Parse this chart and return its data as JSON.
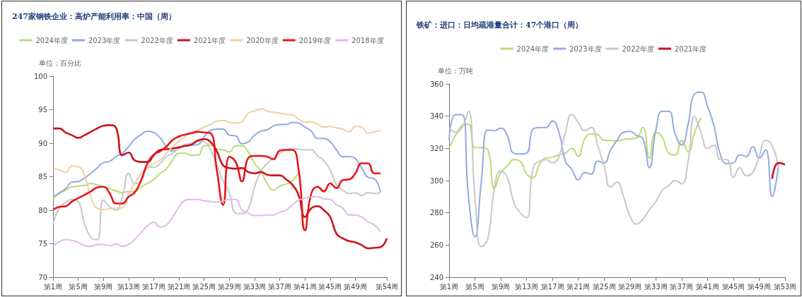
{
  "chart_data": [
    {
      "type": "line",
      "title": "247家钢铁企业：高炉产能利用率：中国（周）",
      "ylabel": "单位：百分比",
      "legend": "top",
      "marker": "none",
      "grid": false,
      "ylim": [
        70,
        100
      ],
      "yticks": [
        70,
        75,
        80,
        85,
        90,
        95,
        100
      ],
      "categories": [
        "第1周",
        null,
        null,
        null,
        "第5周",
        null,
        null,
        null,
        "第9周",
        null,
        null,
        null,
        "第13周",
        null,
        null,
        null,
        "第17周",
        null,
        null,
        null,
        "第21周",
        null,
        null,
        null,
        "第25周",
        null,
        null,
        null,
        "第29周",
        null,
        null,
        null,
        "第33周",
        null,
        null,
        null,
        "第37周",
        null,
        null,
        null,
        "第41周",
        null,
        null,
        null,
        "第45周",
        null,
        null,
        null,
        "第49周",
        null,
        null,
        null,
        null,
        "第54周"
      ],
      "series": [
        {
          "name": "2024年度",
          "color": "#b8dc74",
          "values": [
            81.7,
            82.5,
            83,
            83.5,
            83.6,
            83.7,
            84,
            83.8,
            83.5,
            83.2,
            82.9,
            82.6,
            82.8,
            82.8,
            83.5,
            84,
            84.6,
            85.5,
            86.2,
            87.5,
            88.5,
            88.5,
            88.2,
            88.2,
            89.6,
            89.7,
            89.1,
            89,
            88.7,
            89.6,
            89.6,
            88.7,
            87,
            85.8,
            84,
            83,
            83.6,
            83.9,
            84.4,
            85.6,
            null,
            null,
            null,
            null,
            null,
            null,
            null,
            null,
            null,
            null,
            null,
            null,
            null,
            null
          ]
        },
        {
          "name": "2023年度",
          "color": "#92aae0",
          "values": [
            82,
            82.6,
            83.2,
            84.2,
            84.3,
            84.8,
            85.5,
            86.3,
            87.1,
            87.3,
            88,
            88.5,
            89.5,
            90.6,
            91.3,
            91.8,
            91.6,
            90.8,
            89.5,
            88.8,
            89.2,
            89.8,
            89.7,
            89.8,
            91,
            91.9,
            92.1,
            92.1,
            91.2,
            91.1,
            89.9,
            90.2,
            91.2,
            91.8,
            92,
            92.6,
            92.8,
            92.8,
            93.1,
            93,
            92.4,
            91.8,
            90.7,
            90.7,
            90.2,
            89,
            88,
            88,
            87.7,
            86.3,
            84.9,
            84.7,
            82.7,
            null
          ]
        },
        {
          "name": "2022年度",
          "color": "#c8c8c8",
          "values": [
            78,
            80.3,
            81.2,
            81.6,
            81.3,
            78,
            76,
            75.6,
            81.5,
            80.5,
            80,
            82,
            85.5,
            84,
            84.4,
            86.4,
            86.4,
            87,
            88,
            88.5,
            89.3,
            89.8,
            90,
            90.3,
            90.2,
            89,
            86.8,
            84.3,
            82.6,
            79.6,
            79.5,
            80.2,
            83.5,
            85.8,
            87,
            87.8,
            88.5,
            89,
            89.2,
            89.1,
            89,
            89,
            88.1,
            87.4,
            86,
            83.8,
            83,
            82.5,
            82.6,
            82.2,
            82.6,
            82.5,
            82.6,
            null
          ]
        },
        {
          "name": "2021年度",
          "color": "#c8141c",
          "values": [
            92.2,
            92.2,
            91.6,
            91.2,
            90.8,
            91.2,
            91.7,
            92.2,
            92.6,
            92.7,
            92.3,
            88.2,
            88.6,
            87.4,
            87.2,
            87.2,
            88.2,
            89,
            89.1,
            89.2,
            89.4,
            89.6,
            89.8,
            90.4,
            90.6,
            90.2,
            88.8,
            86.7,
            86.3,
            86.2,
            86.3,
            85.7,
            85.5,
            85.7,
            85.3,
            85.2,
            85.2,
            84.6,
            83.8,
            82.2,
            79,
            80.3,
            80.6,
            80,
            79,
            76.5,
            75.8,
            75.4,
            75.2,
            74.8,
            74.3,
            74.4,
            74.5,
            75.8
          ]
        },
        {
          "name": "2020年度",
          "color": "#efd0a4",
          "values": [
            86.3,
            86,
            85.6,
            86.6,
            86.5,
            85.2,
            82,
            80.3,
            80.1,
            80.2,
            80.3,
            80.4,
            82.5,
            84,
            85.5,
            86.3,
            87,
            87.5,
            88.5,
            89.5,
            90.3,
            91,
            91.6,
            92,
            92.4,
            92.8,
            93.3,
            93.4,
            93.1,
            93,
            93.2,
            94.5,
            94.8,
            95.1,
            94.8,
            94.6,
            94.5,
            94.3,
            94.2,
            93.6,
            93.1,
            93.2,
            92.8,
            92.4,
            92.5,
            92.3,
            92.1,
            91.7,
            92.5,
            92.4,
            91.5,
            91.7,
            91.9,
            null
          ]
        },
        {
          "name": "2019年度",
          "color": "#e8161c",
          "values": [
            80.1,
            80.5,
            80.6,
            81.3,
            81.8,
            82.3,
            82.8,
            83.4,
            83.5,
            82.5,
            81,
            81,
            82,
            82.7,
            84.5,
            87,
            88.3,
            88.8,
            89.5,
            90.5,
            91,
            91.3,
            91.5,
            91.7,
            91.6,
            91.5,
            86,
            80.8,
            88,
            87.2,
            84.3,
            87.8,
            88.1,
            88.1,
            88,
            87.6,
            88.9,
            89,
            89,
            86,
            77,
            82.5,
            83.5,
            82.8,
            84,
            83.3,
            84.5,
            84.6,
            85.5,
            87,
            87,
            85.5,
            85.5,
            null
          ]
        },
        {
          "name": "2018年度",
          "color": "#dcbde6",
          "values": [
            74.6,
            75.3,
            75.6,
            75.5,
            75.2,
            74.7,
            74.6,
            74.9,
            74.9,
            74.7,
            75,
            74.6,
            74.9,
            75.7,
            76.7,
            77.7,
            78.2,
            77.5,
            77.8,
            79,
            80.5,
            81.5,
            81.6,
            81.6,
            81.4,
            81.3,
            81.2,
            81.4,
            81.6,
            81.6,
            80,
            79.6,
            79.2,
            79.2,
            79.3,
            79.3,
            79.7,
            80,
            80.8,
            81.5,
            81.8,
            82,
            82,
            81.7,
            81.6,
            80.8,
            80.3,
            79.3,
            79.3,
            79,
            78.3,
            77.8,
            76.8,
            null
          ]
        }
      ]
    },
    {
      "type": "line",
      "title": "铁矿：进口：日均疏港量合计：47个港口（周）",
      "ylabel": "单位：万吨",
      "legend": "top",
      "marker": "none",
      "grid": false,
      "ylim": [
        240,
        360
      ],
      "yticks": [
        240,
        260,
        280,
        300,
        320,
        340,
        360
      ],
      "categories": [
        "第1周",
        null,
        null,
        null,
        "第5周",
        null,
        null,
        null,
        "第9周",
        null,
        null,
        null,
        "第13周",
        null,
        null,
        null,
        "第17周",
        null,
        null,
        null,
        "第21周",
        null,
        null,
        null,
        "第25周",
        null,
        null,
        null,
        "第29周",
        null,
        null,
        null,
        "第33周",
        null,
        null,
        null,
        "第37周",
        null,
        null,
        null,
        "第41周",
        null,
        null,
        null,
        "第45周",
        null,
        null,
        null,
        "第49周",
        null,
        null,
        null,
        "第53周"
      ],
      "series": [
        {
          "name": "2024年度",
          "color": "#b8dc74",
          "values": [
            320,
            328,
            334,
            335,
            320.5,
            320.5,
            319,
            295,
            305,
            309,
            313,
            312,
            304,
            302,
            310,
            314,
            314.5,
            316,
            317,
            320,
            315,
            326,
            329,
            328.5,
            325,
            325,
            324.5,
            325.5,
            326,
            326.5,
            333,
            314,
            330,
            327,
            317,
            316,
            325,
            318,
            330,
            339,
            null,
            null,
            null,
            null,
            null,
            null,
            null,
            null,
            null,
            null,
            null,
            null,
            null
          ]
        },
        {
          "name": "2023年度",
          "color": "#92aae0",
          "values": [
            325,
            341,
            341,
            290,
            265,
            300,
            331.5,
            331,
            332.5,
            328,
            317,
            316.5,
            317,
            332,
            333,
            333,
            337,
            330,
            312,
            307,
            300.5,
            305,
            304,
            312,
            311,
            319,
            325,
            330,
            330.5,
            328,
            326,
            308,
            331,
            343,
            343,
            329,
            322,
            335,
            354,
            355,
            346,
            334,
            316,
            310.5,
            311,
            316,
            315,
            321,
            314,
            319,
            290,
            310,
            null
          ]
        },
        {
          "name": "2022年度",
          "color": "#c8c8c8",
          "values": [
            333,
            330,
            333,
            343,
            290,
            259,
            264,
            295,
            306,
            302,
            287,
            280,
            277,
            308,
            312,
            313,
            311,
            315,
            330,
            341,
            336,
            331,
            333,
            322,
            309,
            296,
            299,
            290,
            278,
            273,
            276,
            282,
            287,
            294,
            297,
            300,
            298,
            312,
            340,
            330,
            320,
            322,
            313,
            313,
            302,
            308,
            303,
            305,
            315,
            325,
            322,
            307,
            null
          ]
        },
        {
          "name": "2021年度",
          "color": "#c8141c",
          "values": [
            null,
            null,
            null,
            null,
            null,
            null,
            null,
            null,
            null,
            null,
            null,
            null,
            null,
            null,
            null,
            null,
            null,
            null,
            null,
            null,
            null,
            null,
            null,
            null,
            null,
            null,
            null,
            null,
            null,
            null,
            null,
            null,
            null,
            null,
            null,
            null,
            null,
            null,
            null,
            null,
            null,
            null,
            null,
            null,
            null,
            null,
            null,
            null,
            null,
            null,
            301,
            311,
            310
          ]
        }
      ]
    }
  ]
}
